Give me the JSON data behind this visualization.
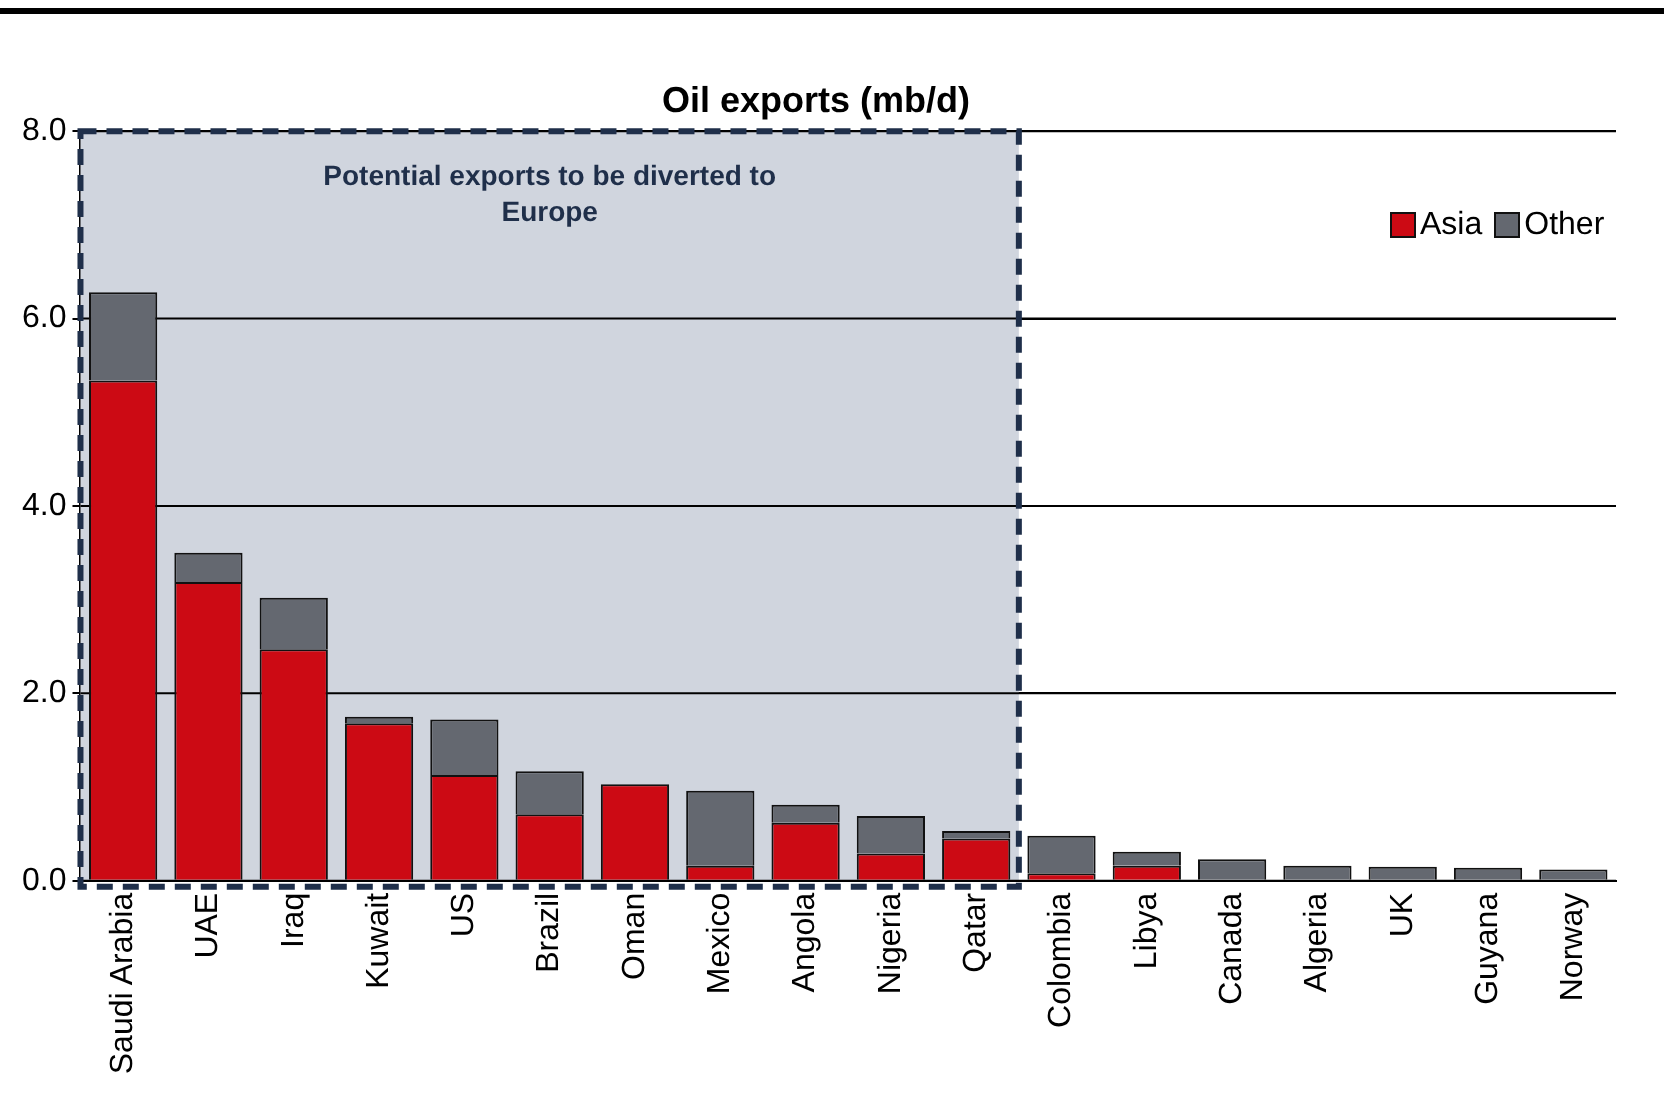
{
  "chart_data": {
    "type": "bar",
    "title": "Oil exports (mb/d)",
    "stacked": true,
    "categories": [
      "Saudi Arabia",
      "UAE",
      "Iraq",
      "Kuwait",
      "US",
      "Brazil",
      "Oman",
      "Mexico",
      "Angola",
      "Nigeria",
      "Qatar",
      "Colombia",
      "Libya",
      "Canada",
      "Algeria",
      "UK",
      "Guyana",
      "Norway"
    ],
    "series": [
      {
        "name": "Asia",
        "color": "#cc0a14",
        "values": [
          5.34,
          3.19,
          2.47,
          1.68,
          1.13,
          0.71,
          1.03,
          0.16,
          0.62,
          0.29,
          0.45,
          0.08,
          0.16,
          0,
          0,
          0,
          0,
          0
        ]
      },
      {
        "name": "Other",
        "color": "#646870",
        "values": [
          0.94,
          0.31,
          0.55,
          0.07,
          0.59,
          0.46,
          0,
          0.8,
          0.19,
          0.4,
          0.08,
          0.4,
          0.15,
          0.23,
          0.16,
          0.15,
          0.14,
          0.12
        ]
      }
    ],
    "ylim": [
      0,
      8
    ],
    "yticks": [
      {
        "value": 0,
        "label": "0.0"
      },
      {
        "value": 2,
        "label": "2.0"
      },
      {
        "value": 4,
        "label": "4.0"
      },
      {
        "value": 6,
        "label": "6.0"
      },
      {
        "value": 8,
        "label": "8.0"
      }
    ],
    "grid": "y",
    "legend": "top right",
    "bands": [
      {
        "axis": "x",
        "from": "Saudi Arabia",
        "to": "Qatar",
        "label": "Potential exports to be diverted to Europe",
        "color": "#d0d5de"
      }
    ]
  }
}
